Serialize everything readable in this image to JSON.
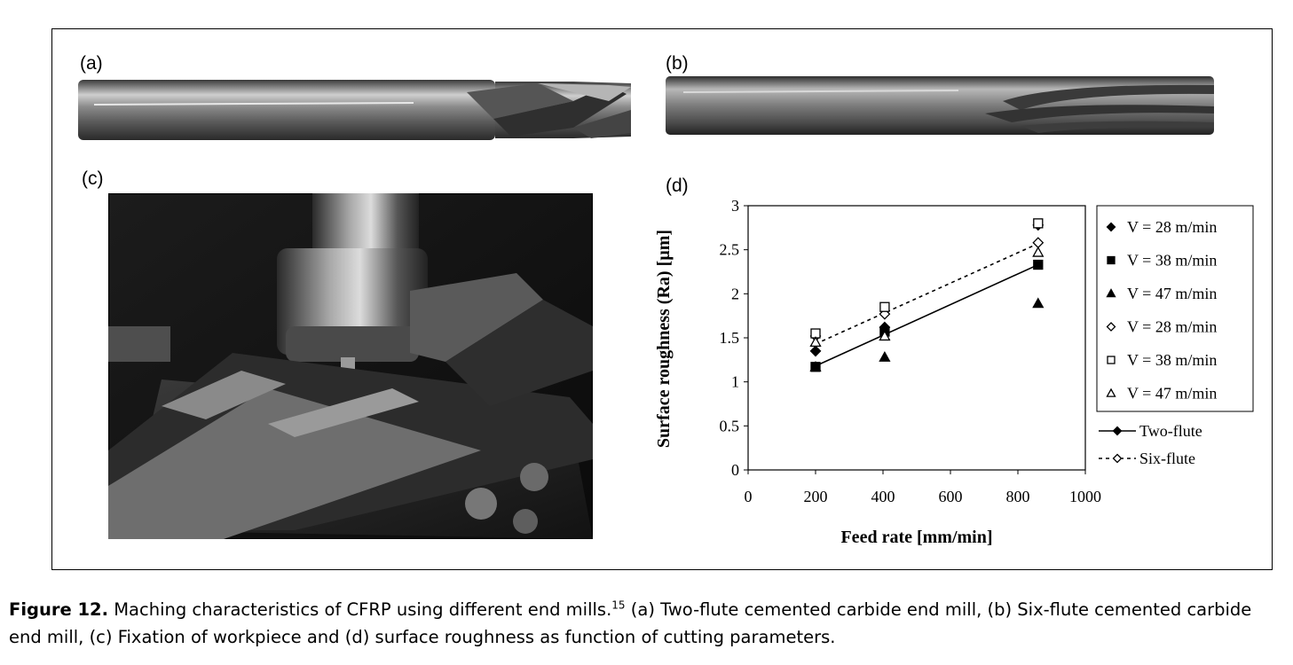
{
  "panels": {
    "a": "(a)",
    "b": "(b)",
    "c": "(c)",
    "d": "(d)"
  },
  "caption": {
    "label": "Figure 12.",
    "text": " Maching characteristics of CFRP using different end mills.",
    "ref": "15",
    "text2": " (a) Two-flute cemented carbide end mill, (b) Six-flute cemented carbide end mill, (c) Fixation of workpiece and (d) surface roughness as function of cutting parameters."
  },
  "chart_data": {
    "type": "scatter",
    "title": "",
    "xlabel": "Feed rate [mm/min]",
    "ylabel": "Surface roughness (Ra) [µm]",
    "xlim": [
      0,
      1000
    ],
    "ylim": [
      0,
      3
    ],
    "xticks": [
      "0",
      "200",
      "400",
      "600",
      "800",
      "1000"
    ],
    "yticks": [
      "0",
      "0.5",
      "1",
      "1.5",
      "2",
      "2.5",
      "3"
    ],
    "grid": false,
    "legend_position": "right",
    "series": [
      {
        "name": "V = 28 m/min",
        "marker": "diamond-filled",
        "x": [
          200,
          405,
          860
        ],
        "y": [
          1.35,
          1.62,
          2.78
        ]
      },
      {
        "name": "V = 38 m/min",
        "marker": "square-filled",
        "x": [
          200,
          405,
          860
        ],
        "y": [
          1.17,
          1.57,
          2.33
        ]
      },
      {
        "name": "V = 47 m/min",
        "marker": "triangle-filled",
        "x": [
          200,
          405,
          860
        ],
        "y": [
          1.17,
          1.28,
          1.89
        ]
      },
      {
        "name": "V = 28 m/min",
        "marker": "diamond-open",
        "x": [
          200,
          405,
          860
        ],
        "y": [
          1.52,
          1.77,
          2.58
        ]
      },
      {
        "name": "V = 38 m/min",
        "marker": "square-open",
        "x": [
          200,
          405,
          860
        ],
        "y": [
          1.55,
          1.85,
          2.8
        ]
      },
      {
        "name": "V = 47 m/min",
        "marker": "triangle-open",
        "x": [
          200,
          405,
          860
        ],
        "y": [
          1.45,
          1.52,
          2.47
        ]
      }
    ],
    "trendlines": [
      {
        "name": "Two-flute",
        "style": "solid",
        "x": [
          200,
          860
        ],
        "y": [
          1.18,
          2.33
        ]
      },
      {
        "name": "Six-flute",
        "style": "dotted",
        "x": [
          200,
          860
        ],
        "y": [
          1.43,
          2.57
        ]
      }
    ]
  }
}
